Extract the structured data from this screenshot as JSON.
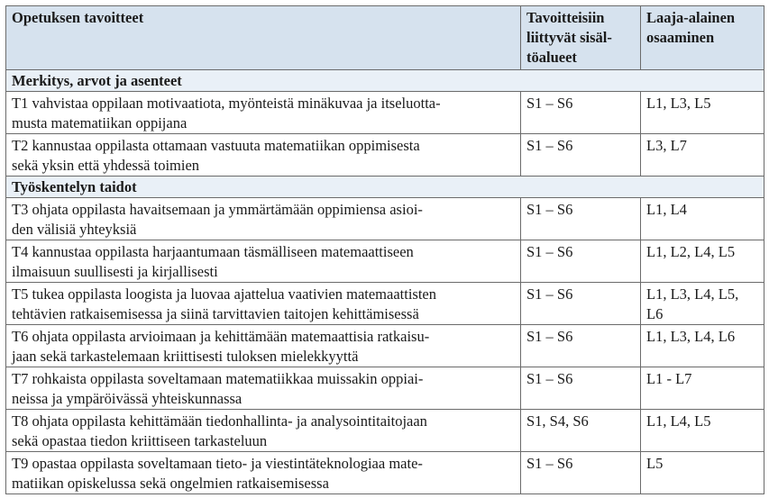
{
  "table": {
    "header": [
      [
        "Opetuksen tavoitteet"
      ],
      [
        "Tavoitteisiin",
        "liittyvät sisäl-",
        "töalueet"
      ],
      [
        "Laaja-alainen",
        "osaaminen"
      ]
    ],
    "sections": [
      {
        "title": "Merkitys, arvot ja asenteet",
        "rows": [
          {
            "goal": [
              "T1 vahvistaa oppilaan motivaatiota, myönteistä minäkuvaa ja itseluotta-",
              "musta matematiikan oppijana"
            ],
            "content": "S1 – S6",
            "competences": [
              "L1, L3, L5"
            ]
          },
          {
            "goal": [
              "T2 kannustaa oppilasta ottamaan vastuuta matematiikan oppimisesta",
              "sekä yksin että yhdessä toimien"
            ],
            "content": "S1 – S6",
            "competences": [
              "L3, L7"
            ]
          }
        ]
      },
      {
        "title": "Työskentelyn taidot",
        "rows": [
          {
            "goal": [
              "T3 ohjata oppilasta havaitsemaan ja ymmärtämään oppimiensa asioi-",
              "den välisiä yhteyksiä"
            ],
            "content": "S1 – S6",
            "competences": [
              "L1, L4"
            ]
          },
          {
            "goal": [
              "T4 kannustaa oppilasta harjaantumaan täsmälliseen matemaattiseen",
              "ilmaisuun suullisesti ja kirjallisesti"
            ],
            "content": "S1 – S6",
            "competences": [
              "L1, L2, L4, L5"
            ]
          },
          {
            "goal": [
              "T5 tukea oppilasta loogista ja luovaa ajattelua vaativien matemaattisten",
              "tehtävien ratkaisemisessa ja siinä tarvittavien taitojen kehittämisessä"
            ],
            "content": "S1 – S6",
            "competences": [
              "L1, L3, L4, L5,",
              "L6"
            ]
          },
          {
            "goal": [
              "T6 ohjata oppilasta arvioimaan ja kehittämään matemaattisia ratkaisu-",
              "jaan sekä tarkastelemaan kriittisesti tuloksen mielekkyyttä"
            ],
            "content": "S1 – S6",
            "competences": [
              "L1, L3, L4, L6"
            ]
          },
          {
            "goal": [
              "T7 rohkaista oppilasta soveltamaan matematiikkaa muissakin oppiai-",
              "neissa ja ympäröivässä yhteiskunnassa"
            ],
            "content": "S1 – S6",
            "competences": [
              "L1 - L7"
            ]
          },
          {
            "goal": [
              "T8 ohjata oppilasta kehittämään tiedonhallinta- ja analysointitaitojaan",
              "sekä opastaa tiedon kriittiseen tarkasteluun"
            ],
            "content": "S1, S4, S6",
            "competences": [
              "L1, L4, L5"
            ]
          },
          {
            "goal": [
              "T9 opastaa oppilasta soveltamaan tieto- ja viestintäteknologiaa mate-",
              "matiikan opiskelussa sekä ongelmien ratkaisemisessa"
            ],
            "content": "S1 – S6",
            "competences": [
              "L5"
            ]
          }
        ]
      }
    ]
  }
}
